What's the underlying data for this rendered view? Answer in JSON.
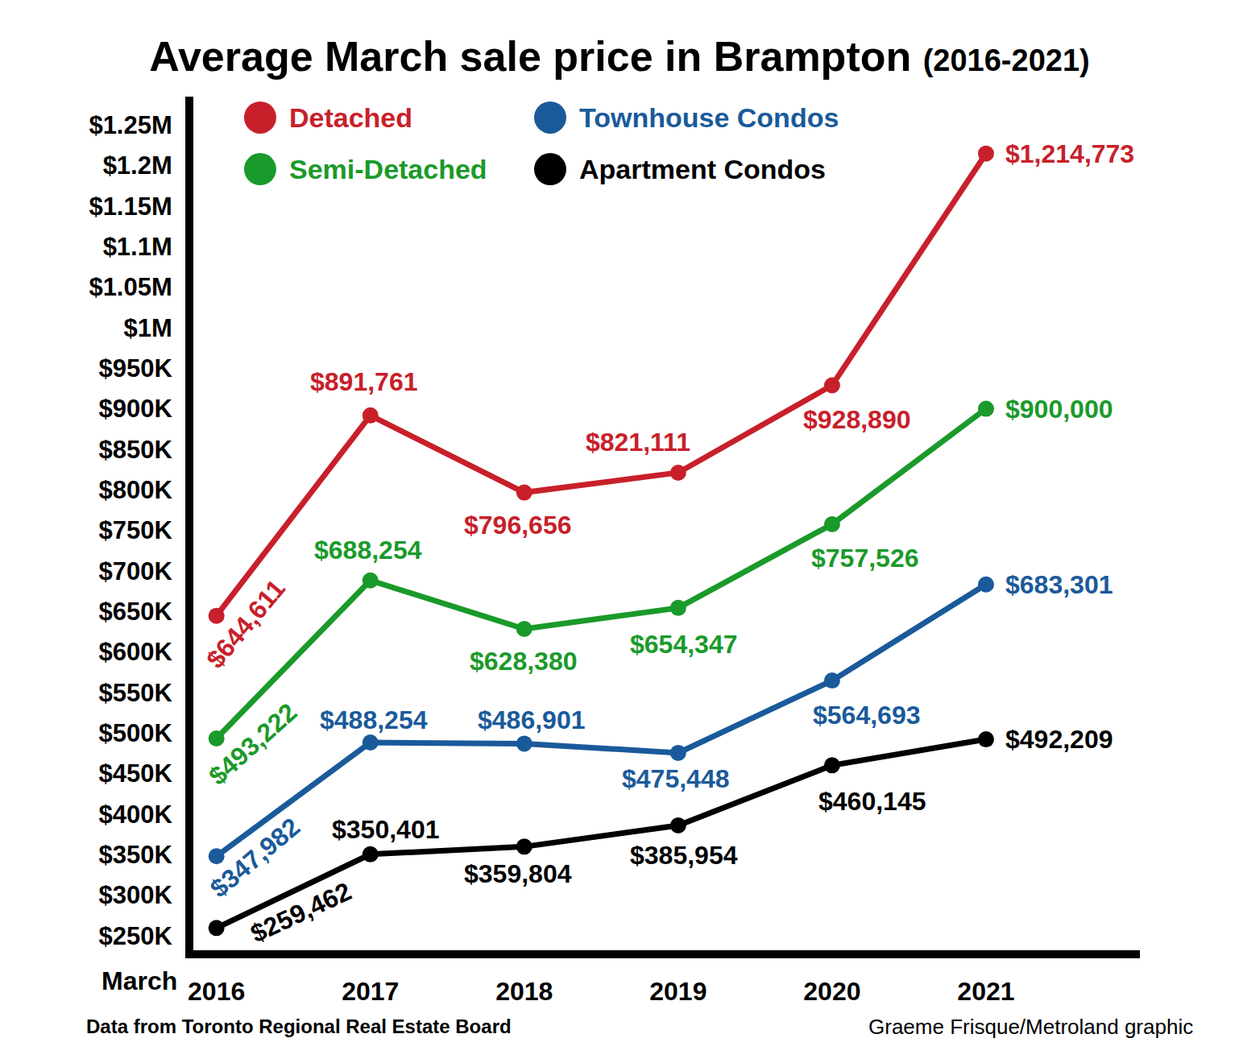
{
  "chart_data": {
    "type": "line",
    "title": "Average March sale price in Brampton",
    "subtitle": "(2016-2021)",
    "xlabel": "March",
    "x": [
      2016,
      2017,
      2018,
      2019,
      2020,
      2021
    ],
    "series": [
      {
        "name": "Detached",
        "color": "#c8202a",
        "values": [
          644611,
          891761,
          796656,
          821111,
          928890,
          1214773
        ],
        "value_labels": [
          "$644,611",
          "$891,761",
          "$796,656",
          "$821,111",
          "$928,890",
          "$1,214,773"
        ]
      },
      {
        "name": "Semi-Detached",
        "color": "#1a9a2a",
        "values": [
          493222,
          688254,
          628380,
          654347,
          757526,
          900000
        ],
        "value_labels": [
          "$493,222",
          "$688,254",
          "$628,380",
          "$654,347",
          "$757,526",
          "$900,000"
        ]
      },
      {
        "name": "Townhouse Condos",
        "color": "#1a5a9a",
        "values": [
          347982,
          488254,
          486901,
          475448,
          564693,
          683301
        ],
        "value_labels": [
          "$347,982",
          "$488,254",
          "$486,901",
          "$475,448",
          "$564,693",
          "$683,301"
        ]
      },
      {
        "name": "Apartment Condos",
        "color": "#000000",
        "values": [
          259462,
          350401,
          359804,
          385954,
          460145,
          492209
        ],
        "value_labels": [
          "$259,462",
          "$350,401",
          "$359,804",
          "$385,954",
          "$460,145",
          "$492,209"
        ]
      }
    ],
    "xlim": [
      2015.85,
      2022
    ],
    "xticks": [
      2016,
      2017,
      2018,
      2019,
      2020,
      2021
    ],
    "ylim": [
      232000,
      1285000
    ],
    "yticks": [
      {
        "value": 250000,
        "label": "$250K"
      },
      {
        "value": 300000,
        "label": "$300K"
      },
      {
        "value": 350000,
        "label": "$350K"
      },
      {
        "value": 400000,
        "label": "$400K"
      },
      {
        "value": 450000,
        "label": "$450K"
      },
      {
        "value": 500000,
        "label": "$500K"
      },
      {
        "value": 550000,
        "label": "$550K"
      },
      {
        "value": 600000,
        "label": "$600K"
      },
      {
        "value": 650000,
        "label": "$650K"
      },
      {
        "value": 700000,
        "label": "$700K"
      },
      {
        "value": 750000,
        "label": "$750K"
      },
      {
        "value": 800000,
        "label": "$800K"
      },
      {
        "value": 850000,
        "label": "$850K"
      },
      {
        "value": 900000,
        "label": "$900K"
      },
      {
        "value": 950000,
        "label": "$950K"
      },
      {
        "value": 1000000,
        "label": "$1M"
      },
      {
        "value": 1050000,
        "label": "$1.05M"
      },
      {
        "value": 1100000,
        "label": "$1.1M"
      },
      {
        "value": 1150000,
        "label": "$1.15M"
      },
      {
        "value": 1200000,
        "label": "$1.2M"
      },
      {
        "value": 1250000,
        "label": "$1.25M"
      }
    ],
    "grid": false,
    "legend": "upper left",
    "data_labels": true,
    "marker": "circle",
    "line_style": "solid",
    "annotations": [
      "Data from Toronto Regional Real Estate Board",
      "Graeme Frisque/Metroland graphic"
    ]
  }
}
